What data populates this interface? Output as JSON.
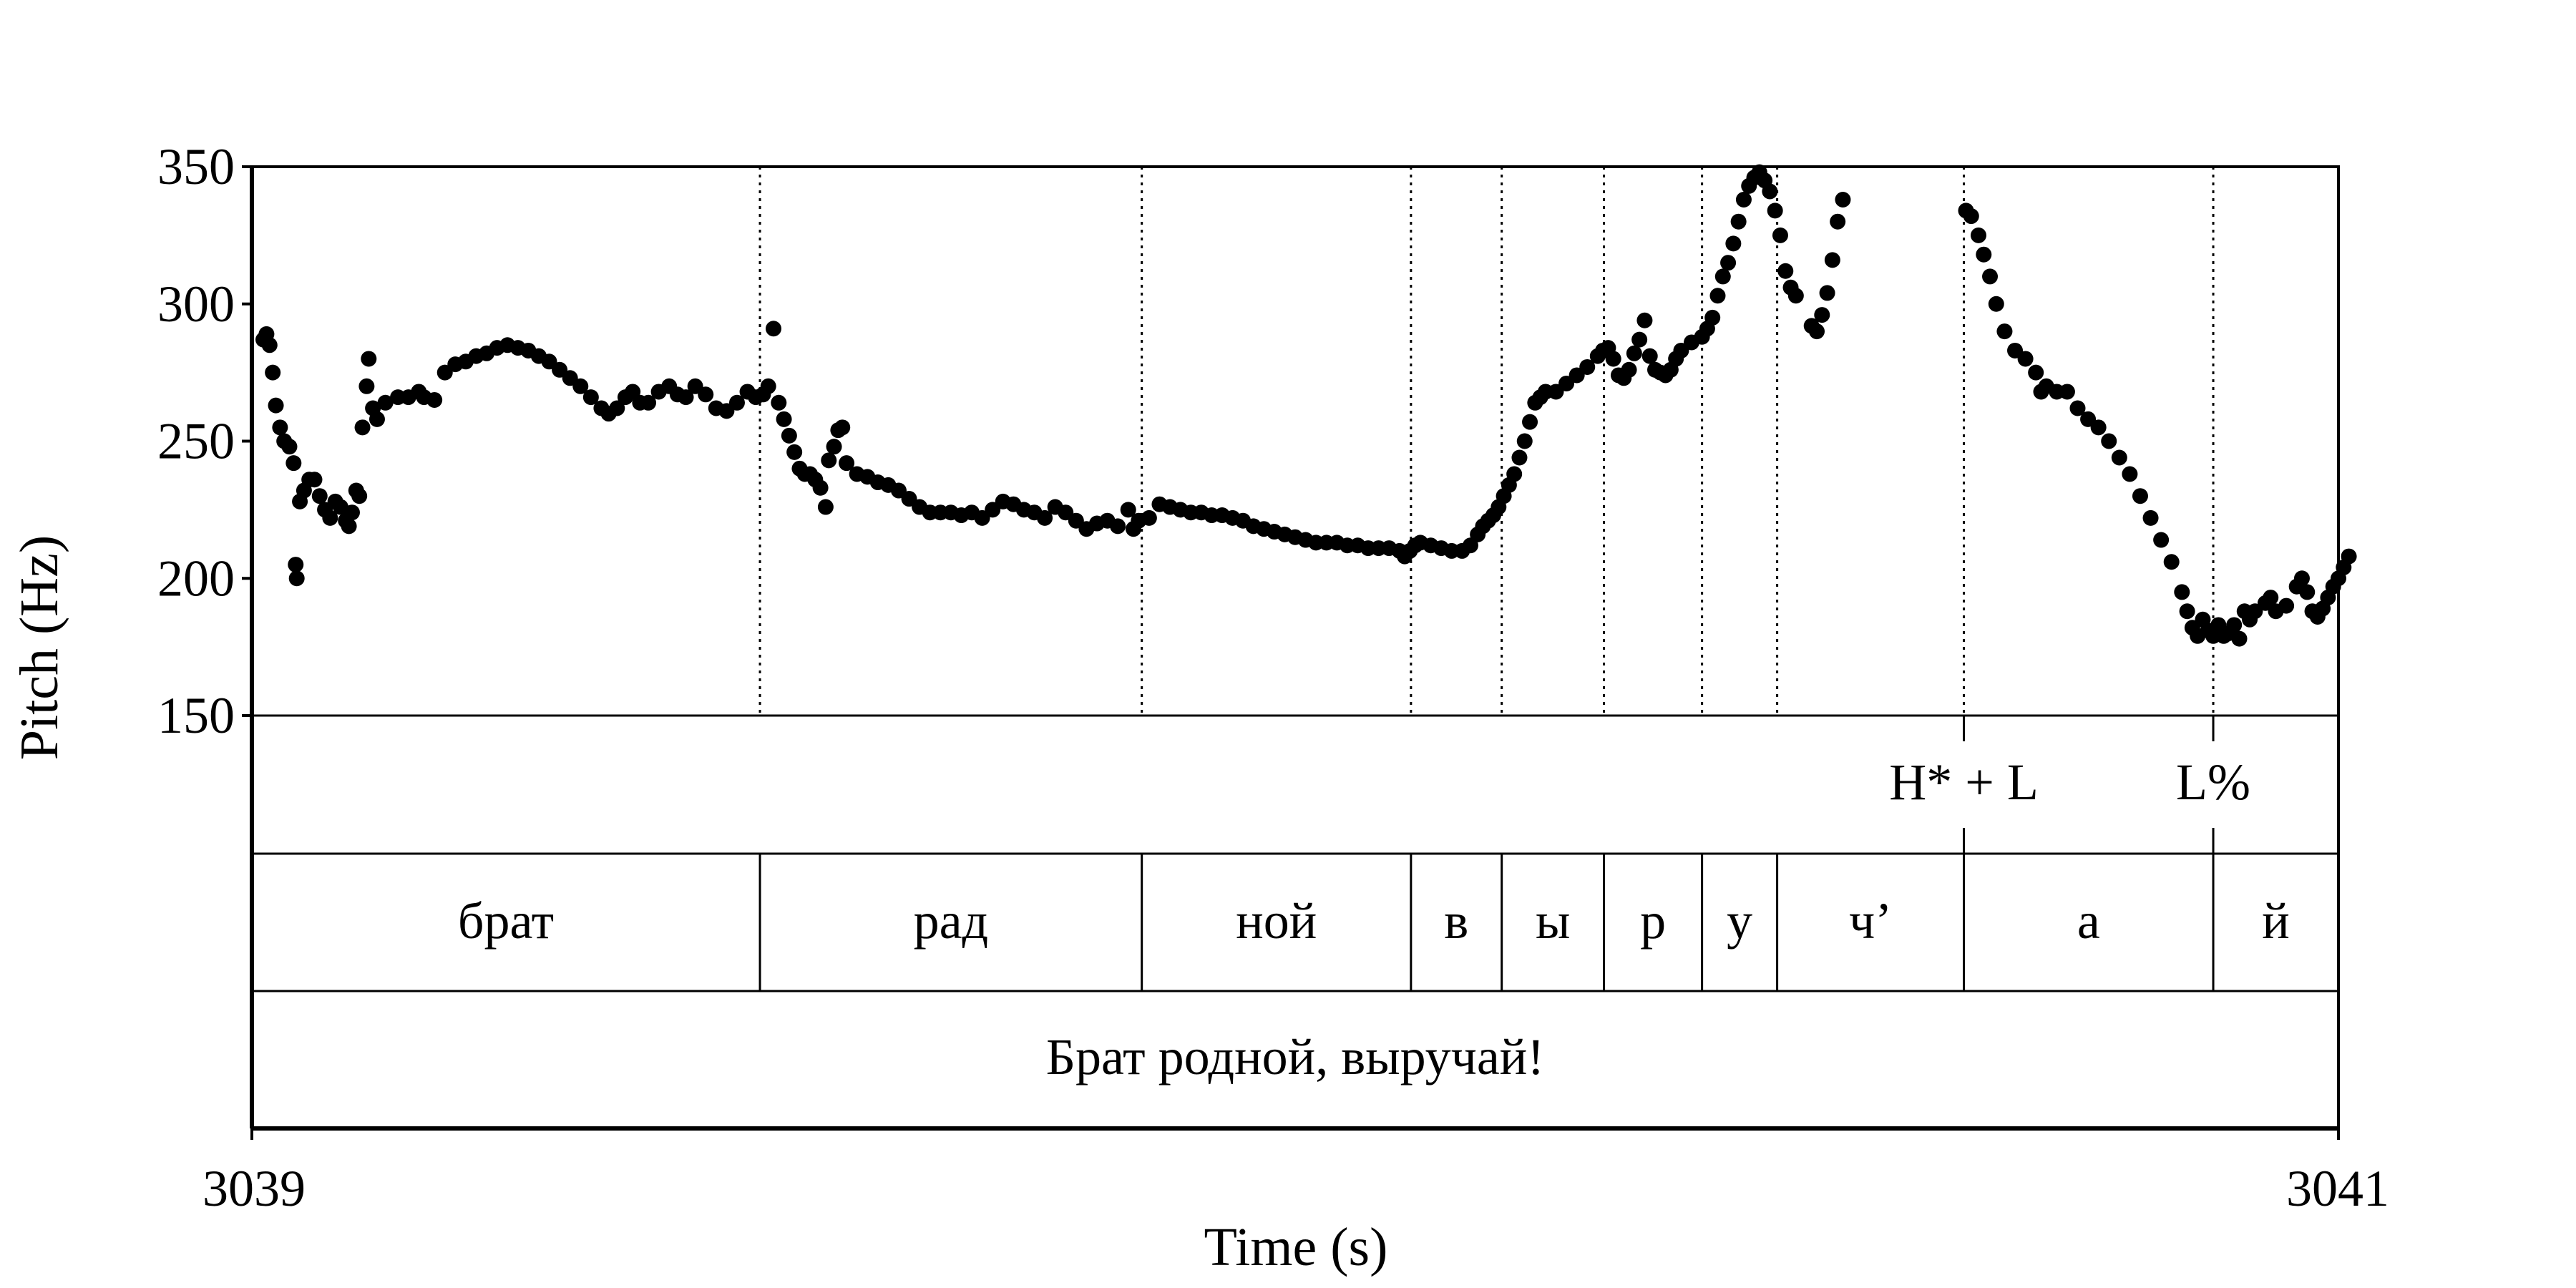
{
  "chart_data": {
    "type": "scatter",
    "xlabel": "Time (s)",
    "ylabel": "Pitch (Hz)",
    "xlim": [
      3039,
      3041
    ],
    "ylim": [
      150,
      350
    ],
    "x_tick_labels": [
      "3039",
      "3041"
    ],
    "y_tick_labels": [
      "150",
      "200",
      "250",
      "300",
      "350"
    ],
    "y_ticks": [
      150,
      200,
      250,
      300,
      350
    ],
    "grid": false,
    "point_color": "#000000",
    "boundaries": [
      3039.487,
      3039.853,
      3040.111,
      3040.198,
      3040.296,
      3040.39,
      3040.462,
      3040.641,
      3040.88
    ],
    "tones": [
      {
        "label": "H* + L",
        "time": 3040.641
      },
      {
        "label": "L%",
        "time": 3040.88
      }
    ],
    "segments": [
      {
        "label": "брат",
        "start": 3039.0,
        "end": 3039.487
      },
      {
        "label": "рад",
        "start": 3039.487,
        "end": 3039.853
      },
      {
        "label": "ной",
        "start": 3039.853,
        "end": 3040.111
      },
      {
        "label": "в",
        "start": 3040.111,
        "end": 3040.198
      },
      {
        "label": "ы",
        "start": 3040.198,
        "end": 3040.296
      },
      {
        "label": "р",
        "start": 3040.296,
        "end": 3040.39
      },
      {
        "label": "у",
        "start": 3040.39,
        "end": 3040.462
      },
      {
        "label": "ч’",
        "start": 3040.462,
        "end": 3040.641
      },
      {
        "label": "а",
        "start": 3040.641,
        "end": 3040.88
      },
      {
        "label": "й",
        "start": 3040.88,
        "end": 3041.0
      }
    ],
    "sentence": "Брат родной, выручай!",
    "pitch_points": [
      [
        3039.011,
        287
      ],
      [
        3039.014,
        289
      ],
      [
        3039.017,
        285
      ],
      [
        3039.02,
        275
      ],
      [
        3039.023,
        263
      ],
      [
        3039.027,
        255
      ],
      [
        3039.031,
        250
      ],
      [
        3039.036,
        248
      ],
      [
        3039.04,
        242
      ],
      [
        3039.042,
        205
      ],
      [
        3039.043,
        200
      ],
      [
        3039.046,
        228
      ],
      [
        3039.05,
        232
      ],
      [
        3039.055,
        236
      ],
      [
        3039.06,
        236
      ],
      [
        3039.065,
        230
      ],
      [
        3039.07,
        225
      ],
      [
        3039.075,
        222
      ],
      [
        3039.08,
        228
      ],
      [
        3039.085,
        226
      ],
      [
        3039.09,
        221
      ],
      [
        3039.093,
        219
      ],
      [
        3039.096,
        224
      ],
      [
        3039.1,
        232
      ],
      [
        3039.103,
        230
      ],
      [
        3039.106,
        255
      ],
      [
        3039.11,
        270
      ],
      [
        3039.112,
        280
      ],
      [
        3039.116,
        262
      ],
      [
        3039.12,
        258
      ],
      [
        3039.128,
        264
      ],
      [
        3039.14,
        266
      ],
      [
        3039.15,
        266
      ],
      [
        3039.16,
        268
      ],
      [
        3039.165,
        266
      ],
      [
        3039.175,
        265
      ],
      [
        3039.185,
        275
      ],
      [
        3039.195,
        278
      ],
      [
        3039.205,
        279
      ],
      [
        3039.215,
        281
      ],
      [
        3039.225,
        282
      ],
      [
        3039.235,
        284
      ],
      [
        3039.245,
        285
      ],
      [
        3039.255,
        284
      ],
      [
        3039.265,
        283
      ],
      [
        3039.275,
        281
      ],
      [
        3039.285,
        279
      ],
      [
        3039.295,
        276
      ],
      [
        3039.305,
        273
      ],
      [
        3039.315,
        270
      ],
      [
        3039.325,
        266
      ],
      [
        3039.335,
        262
      ],
      [
        3039.342,
        260
      ],
      [
        3039.35,
        262
      ],
      [
        3039.358,
        266
      ],
      [
        3039.365,
        268
      ],
      [
        3039.372,
        264
      ],
      [
        3039.38,
        264
      ],
      [
        3039.39,
        268
      ],
      [
        3039.4,
        270
      ],
      [
        3039.408,
        267
      ],
      [
        3039.416,
        266
      ],
      [
        3039.425,
        270
      ],
      [
        3039.435,
        267
      ],
      [
        3039.445,
        262
      ],
      [
        3039.455,
        261
      ],
      [
        3039.465,
        264
      ],
      [
        3039.475,
        268
      ],
      [
        3039.483,
        266
      ],
      [
        3039.49,
        267
      ],
      [
        3039.495,
        270
      ],
      [
        3039.5,
        291
      ],
      [
        3039.505,
        264
      ],
      [
        3039.51,
        258
      ],
      [
        3039.515,
        252
      ],
      [
        3039.52,
        246
      ],
      [
        3039.525,
        240
      ],
      [
        3039.53,
        238
      ],
      [
        3039.535,
        238
      ],
      [
        3039.54,
        236
      ],
      [
        3039.545,
        233
      ],
      [
        3039.55,
        226
      ],
      [
        3039.553,
        243
      ],
      [
        3039.558,
        248
      ],
      [
        3039.562,
        254
      ],
      [
        3039.566,
        255
      ],
      [
        3039.57,
        242
      ],
      [
        3039.58,
        238
      ],
      [
        3039.59,
        237
      ],
      [
        3039.6,
        235
      ],
      [
        3039.61,
        234
      ],
      [
        3039.62,
        232
      ],
      [
        3039.63,
        229
      ],
      [
        3039.64,
        226
      ],
      [
        3039.65,
        224
      ],
      [
        3039.66,
        224
      ],
      [
        3039.67,
        224
      ],
      [
        3039.68,
        223
      ],
      [
        3039.69,
        224
      ],
      [
        3039.7,
        222
      ],
      [
        3039.71,
        225
      ],
      [
        3039.72,
        228
      ],
      [
        3039.73,
        227
      ],
      [
        3039.74,
        225
      ],
      [
        3039.75,
        224
      ],
      [
        3039.76,
        222
      ],
      [
        3039.77,
        226
      ],
      [
        3039.78,
        224
      ],
      [
        3039.79,
        221
      ],
      [
        3039.8,
        218
      ],
      [
        3039.81,
        220
      ],
      [
        3039.82,
        221
      ],
      [
        3039.83,
        219
      ],
      [
        3039.84,
        225
      ],
      [
        3039.845,
        218
      ],
      [
        3039.85,
        221
      ],
      [
        3039.86,
        222
      ],
      [
        3039.87,
        227
      ],
      [
        3039.88,
        226
      ],
      [
        3039.89,
        225
      ],
      [
        3039.9,
        224
      ],
      [
        3039.91,
        224
      ],
      [
        3039.92,
        223
      ],
      [
        3039.93,
        223
      ],
      [
        3039.94,
        222
      ],
      [
        3039.95,
        221
      ],
      [
        3039.96,
        219
      ],
      [
        3039.97,
        218
      ],
      [
        3039.98,
        217
      ],
      [
        3039.99,
        216
      ],
      [
        3040.0,
        215
      ],
      [
        3040.01,
        214
      ],
      [
        3040.02,
        213
      ],
      [
        3040.03,
        213
      ],
      [
        3040.04,
        213
      ],
      [
        3040.05,
        212
      ],
      [
        3040.06,
        212
      ],
      [
        3040.07,
        211
      ],
      [
        3040.08,
        211
      ],
      [
        3040.09,
        211
      ],
      [
        3040.1,
        210
      ],
      [
        3040.105,
        208
      ],
      [
        3040.11,
        210
      ],
      [
        3040.115,
        212
      ],
      [
        3040.12,
        213
      ],
      [
        3040.13,
        212
      ],
      [
        3040.14,
        211
      ],
      [
        3040.15,
        210
      ],
      [
        3040.16,
        210
      ],
      [
        3040.168,
        212
      ],
      [
        3040.175,
        216
      ],
      [
        3040.18,
        219
      ],
      [
        3040.185,
        221
      ],
      [
        3040.19,
        223
      ],
      [
        3040.195,
        226
      ],
      [
        3040.2,
        230
      ],
      [
        3040.205,
        234
      ],
      [
        3040.21,
        238
      ],
      [
        3040.215,
        244
      ],
      [
        3040.22,
        250
      ],
      [
        3040.225,
        257
      ],
      [
        3040.23,
        264
      ],
      [
        3040.235,
        266
      ],
      [
        3040.24,
        268
      ],
      [
        3040.25,
        268
      ],
      [
        3040.26,
        271
      ],
      [
        3040.27,
        274
      ],
      [
        3040.28,
        277
      ],
      [
        3040.29,
        281
      ],
      [
        3040.295,
        283
      ],
      [
        3040.3,
        284
      ],
      [
        3040.305,
        280
      ],
      [
        3040.31,
        274
      ],
      [
        3040.315,
        273
      ],
      [
        3040.32,
        276
      ],
      [
        3040.325,
        282
      ],
      [
        3040.33,
        287
      ],
      [
        3040.335,
        294
      ],
      [
        3040.34,
        281
      ],
      [
        3040.345,
        276
      ],
      [
        3040.35,
        275
      ],
      [
        3040.355,
        274
      ],
      [
        3040.36,
        276
      ],
      [
        3040.365,
        280
      ],
      [
        3040.37,
        283
      ],
      [
        3040.38,
        286
      ],
      [
        3040.39,
        288
      ],
      [
        3040.395,
        291
      ],
      [
        3040.4,
        295
      ],
      [
        3040.405,
        303
      ],
      [
        3040.41,
        310
      ],
      [
        3040.415,
        315
      ],
      [
        3040.42,
        322
      ],
      [
        3040.425,
        330
      ],
      [
        3040.43,
        338
      ],
      [
        3040.435,
        343
      ],
      [
        3040.44,
        346
      ],
      [
        3040.445,
        348
      ],
      [
        3040.45,
        345
      ],
      [
        3040.455,
        341
      ],
      [
        3040.46,
        334
      ],
      [
        3040.465,
        325
      ],
      [
        3040.47,
        312
      ],
      [
        3040.475,
        306
      ],
      [
        3040.48,
        303
      ],
      [
        3040.495,
        292
      ],
      [
        3040.5,
        290
      ],
      [
        3040.505,
        296
      ],
      [
        3040.51,
        304
      ],
      [
        3040.515,
        316
      ],
      [
        3040.52,
        330
      ],
      [
        3040.525,
        338
      ],
      [
        3040.643,
        334
      ],
      [
        3040.648,
        332
      ],
      [
        3040.655,
        325
      ],
      [
        3040.66,
        318
      ],
      [
        3040.666,
        310
      ],
      [
        3040.672,
        300
      ],
      [
        3040.68,
        290
      ],
      [
        3040.69,
        283
      ],
      [
        3040.7,
        280
      ],
      [
        3040.71,
        275
      ],
      [
        3040.715,
        268
      ],
      [
        3040.72,
        270
      ],
      [
        3040.73,
        268
      ],
      [
        3040.74,
        268
      ],
      [
        3040.75,
        262
      ],
      [
        3040.76,
        258
      ],
      [
        3040.77,
        255
      ],
      [
        3040.78,
        250
      ],
      [
        3040.79,
        244
      ],
      [
        3040.8,
        238
      ],
      [
        3040.81,
        230
      ],
      [
        3040.82,
        222
      ],
      [
        3040.83,
        214
      ],
      [
        3040.84,
        206
      ],
      [
        3040.85,
        195
      ],
      [
        3040.855,
        188
      ],
      [
        3040.86,
        182
      ],
      [
        3040.865,
        179
      ],
      [
        3040.87,
        185
      ],
      [
        3040.875,
        181
      ],
      [
        3040.88,
        179
      ],
      [
        3040.885,
        183
      ],
      [
        3040.89,
        179
      ],
      [
        3040.895,
        180
      ],
      [
        3040.9,
        183
      ],
      [
        3040.905,
        178
      ],
      [
        3040.91,
        188
      ],
      [
        3040.915,
        185
      ],
      [
        3040.92,
        188
      ],
      [
        3040.93,
        191
      ],
      [
        3040.935,
        193
      ],
      [
        3040.94,
        188
      ],
      [
        3040.95,
        190
      ],
      [
        3040.96,
        197
      ],
      [
        3040.965,
        200
      ],
      [
        3040.97,
        195
      ],
      [
        3040.975,
        188
      ],
      [
        3040.98,
        186
      ],
      [
        3040.985,
        189
      ],
      [
        3040.99,
        193
      ],
      [
        3040.995,
        197
      ],
      [
        3041.0,
        200
      ],
      [
        3041.005,
        204
      ],
      [
        3041.01,
        208
      ]
    ]
  }
}
